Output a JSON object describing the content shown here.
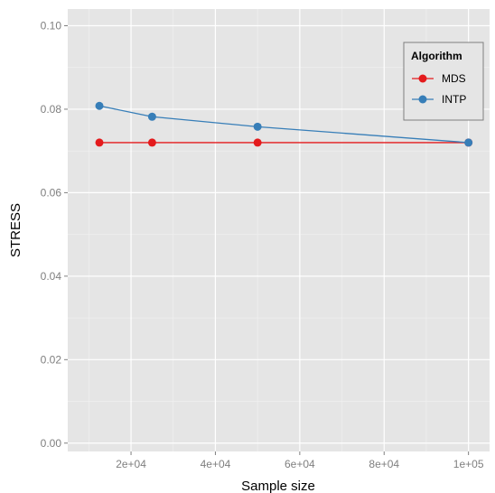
{
  "chart_data": {
    "type": "line",
    "xlabel": "Sample size",
    "ylabel": "STRESS",
    "xlim": [
      5000,
      105000
    ],
    "ylim": [
      -0.002,
      0.104
    ],
    "x_ticks": [
      20000,
      40000,
      60000,
      80000,
      100000
    ],
    "x_tick_labels": [
      "2e+04",
      "4e+04",
      "6e+04",
      "8e+04",
      "1e+05"
    ],
    "y_ticks": [
      0.0,
      0.02,
      0.04,
      0.06,
      0.08,
      0.1
    ],
    "y_tick_labels": [
      "0.00",
      "0.02",
      "0.04",
      "0.06",
      "0.08",
      "0.10"
    ],
    "grid": true,
    "legend": {
      "title": "Algorithm",
      "placement": "top-right"
    },
    "series": [
      {
        "name": "MDS",
        "color": "#e41a1c",
        "x": [
          12500,
          25000,
          50000,
          100000
        ],
        "y": [
          0.072,
          0.072,
          0.072,
          0.072
        ]
      },
      {
        "name": "INTP",
        "color": "#377eb8",
        "x": [
          12500,
          25000,
          50000,
          100000
        ],
        "y": [
          0.0808,
          0.0782,
          0.0758,
          0.072
        ]
      }
    ]
  }
}
